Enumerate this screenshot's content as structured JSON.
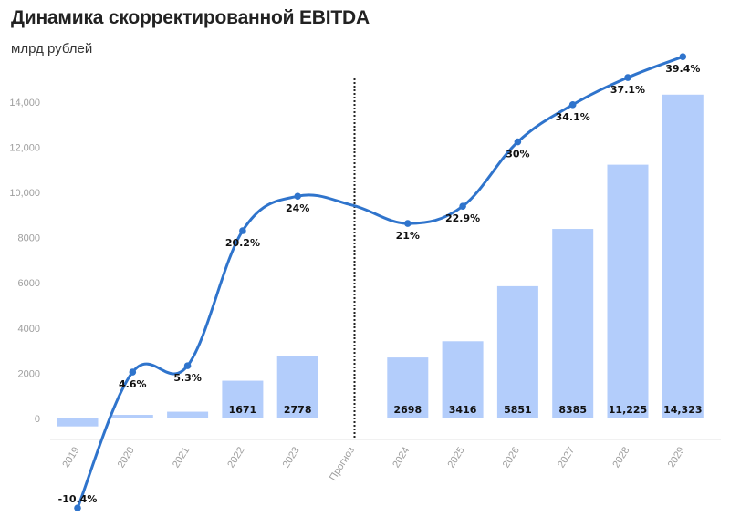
{
  "header": {
    "title": "Динамика скорректированной EBITDA",
    "subtitle": "млрд рублей"
  },
  "chart_data": {
    "type": "bar",
    "title": "Динамика скорректированной EBITDA",
    "subtitle": "млрд рублей",
    "ylim": [
      -800,
      14600
    ],
    "yticks": [
      0,
      2000,
      4000,
      6000,
      8000,
      10000,
      12000,
      14000
    ],
    "ytick_labels": [
      "0",
      "2000",
      "4000",
      "6000",
      "8000",
      "10,000",
      "12,000",
      "14,000"
    ],
    "categories": [
      "2019",
      "2020",
      "2021",
      "2022",
      "2023",
      "Прогноз",
      "2024",
      "2025",
      "2026",
      "2027",
      "2028",
      "2029"
    ],
    "divider_category": "Прогноз",
    "bar_color": "#b3cdfb",
    "line_color": "#2f74cc",
    "series": [
      {
        "type": "bar",
        "values": [
          -350,
          160,
          300,
          1671,
          2778,
          null,
          2698,
          3416,
          5851,
          8385,
          11225,
          14323
        ],
        "labels": [
          "",
          "",
          "",
          "1671",
          "2778",
          "",
          "2698",
          "3416",
          "5851",
          "8385",
          "11,225",
          "14,323"
        ]
      },
      {
        "type": "line",
        "values": [
          -10.4,
          4.6,
          5.3,
          20.2,
          24,
          null,
          21,
          22.9,
          30,
          34.1,
          37.1,
          39.4
        ],
        "labels": [
          "-10.4%",
          "4.6%",
          "5.3%",
          "20.2%",
          "24%",
          "",
          "21%",
          "22.9%",
          "30%",
          "34.1%",
          "37.1%",
          "39.4%"
        ]
      }
    ],
    "grid": false
  }
}
